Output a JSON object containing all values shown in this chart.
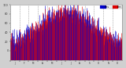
{
  "background_color": "#d0d0d0",
  "plot_bg_color": "#ffffff",
  "num_days": 365,
  "y_min": -20,
  "y_max": 100,
  "yticks": [
    0,
    20,
    40,
    60,
    80,
    100
  ],
  "ytick_labels": [
    "0",
    "20",
    "40",
    "60",
    "80",
    "100"
  ],
  "grid_color": "#999999",
  "past_color": "#dd0000",
  "prev_color": "#0000cc",
  "seed": 42,
  "month_starts": [
    0,
    31,
    59,
    90,
    120,
    151,
    181,
    212,
    243,
    273,
    304,
    334
  ],
  "month_labels": [
    "J",
    "F",
    "M",
    "A",
    "M",
    "J",
    "J",
    "A",
    "S",
    "O",
    "N",
    "D"
  ]
}
